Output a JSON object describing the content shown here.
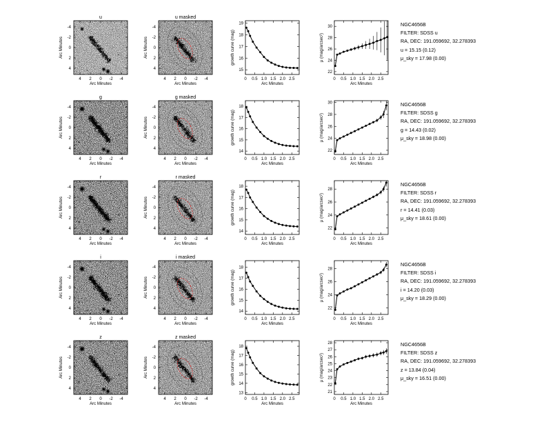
{
  "figure": {
    "background": "#ffffff",
    "ink": "#000000"
  },
  "rows": [
    {
      "band": "u",
      "image_title": "u",
      "masked_title": "u masked",
      "info": [
        "NGC4656B",
        "FILTER: SDSS u",
        "RA, DEC: 191.059692, 32.278393",
        "u = 15.15  (0.12)",
        "μ_sky = 17.98  (0.00)"
      ]
    },
    {
      "band": "g",
      "image_title": "g",
      "masked_title": "g masked",
      "info": [
        "NGC4656B",
        "FILTER: SDSS g",
        "RA, DEC: 191.059692, 32.278393",
        "g = 14.43  (0.02)",
        "μ_sky = 18.98  (0.00)"
      ]
    },
    {
      "band": "r",
      "image_title": "r",
      "masked_title": "r masked",
      "info": [
        "NGC4656B",
        "FILTER: SDSS r",
        "RA, DEC: 191.059692, 32.278393",
        "r = 14.41  (0.03)",
        "μ_sky = 18.61  (0.00)"
      ]
    },
    {
      "band": "i",
      "image_title": "i",
      "masked_title": "i masked",
      "info": [
        "NGC4656B",
        "FILTER: SDSS i",
        "RA, DEC: 191.059692, 32.278393",
        "i = 14.20  (0.03)",
        "μ_sky = 18.29  (0.00)"
      ]
    },
    {
      "band": "z",
      "image_title": "z",
      "masked_title": "z masked",
      "info": [
        "NGC4656B",
        "FILTER: SDSS z",
        "RA, DEC: 191.059692, 32.278393",
        "z = 13.84  (0.04)",
        "μ_sky = 16.51  (0.00)"
      ]
    }
  ],
  "chart_data": [
    {
      "type": "image",
      "panel": "band images",
      "title": [
        "u",
        "g",
        "r",
        "i",
        "z"
      ],
      "xlabel": "Arc Minutes",
      "ylabel": "Arc Minutes",
      "xticks": [
        4,
        2,
        0,
        -2,
        -4
      ],
      "yticks": [
        -4,
        -2,
        0,
        2,
        4
      ],
      "xlim": [
        5.2,
        -5.2
      ],
      "ylim": [
        -5.2,
        5.2
      ]
    },
    {
      "type": "image",
      "panel": "masked images with ellipse apertures",
      "title": [
        "u masked",
        "g masked",
        "r masked",
        "i masked",
        "z masked"
      ],
      "xlabel": "Arc Minutes",
      "ylabel": "Arc Minutes",
      "xticks": [
        4,
        2,
        0,
        -2,
        -4
      ],
      "yticks": [
        -4,
        -2,
        0,
        2,
        4
      ],
      "xlim": [
        5.2,
        -5.2
      ],
      "ylim": [
        -5.2,
        5.2
      ],
      "ellipse_colors": [
        "#dd2222",
        "#555555"
      ]
    },
    {
      "type": "line",
      "panel": "growth curve",
      "xlabel": "Arc Minutes",
      "ylabel": "growth curve (mag)",
      "xticks": [
        0,
        0.5,
        1.0,
        1.5,
        2.0,
        2.5
      ],
      "xtick_labels": [
        "0",
        "0.5",
        "1.0",
        "1.5",
        "2.0",
        "2.5"
      ],
      "xlim": [
        0,
        2.9
      ],
      "series": [
        {
          "band": "u",
          "yticks": [
            15,
            16,
            17,
            18,
            19
          ],
          "ylim": [
            19.2,
            14.6
          ],
          "x": [
            0.05,
            0.15,
            0.25,
            0.4,
            0.6,
            0.8,
            1.0,
            1.2,
            1.4,
            1.6,
            1.8,
            2.0,
            2.2,
            2.4,
            2.6,
            2.8
          ],
          "y": [
            18.6,
            18.3,
            17.9,
            17.4,
            16.9,
            16.5,
            16.1,
            15.8,
            15.6,
            15.45,
            15.33,
            15.25,
            15.2,
            15.17,
            15.16,
            15.15
          ]
        },
        {
          "band": "g",
          "yticks": [
            14,
            15,
            16,
            17,
            18
          ],
          "ylim": [
            18.5,
            13.7
          ],
          "x": [
            0.05,
            0.15,
            0.25,
            0.4,
            0.6,
            0.8,
            1.0,
            1.2,
            1.4,
            1.6,
            1.8,
            2.0,
            2.2,
            2.4,
            2.6,
            2.8
          ],
          "y": [
            17.9,
            17.5,
            17.1,
            16.6,
            16.1,
            15.7,
            15.35,
            15.1,
            14.9,
            14.75,
            14.63,
            14.55,
            14.49,
            14.46,
            14.44,
            14.43
          ]
        },
        {
          "band": "r",
          "yticks": [
            14,
            15,
            16,
            17,
            18
          ],
          "ylim": [
            18.5,
            13.7
          ],
          "x": [
            0.05,
            0.15,
            0.25,
            0.4,
            0.6,
            0.8,
            1.0,
            1.2,
            1.4,
            1.6,
            1.8,
            2.0,
            2.2,
            2.4,
            2.6,
            2.8
          ],
          "y": [
            17.7,
            17.4,
            17.0,
            16.6,
            16.1,
            15.7,
            15.35,
            15.1,
            14.9,
            14.75,
            14.63,
            14.55,
            14.49,
            14.45,
            14.42,
            14.41
          ]
        },
        {
          "band": "i",
          "yticks": [
            14,
            15,
            16,
            17,
            18
          ],
          "ylim": [
            18.6,
            13.7
          ],
          "x": [
            0.05,
            0.15,
            0.25,
            0.4,
            0.6,
            0.8,
            1.0,
            1.2,
            1.4,
            1.6,
            1.8,
            2.0,
            2.2,
            2.4,
            2.6,
            2.8
          ],
          "y": [
            17.5,
            17.1,
            16.7,
            16.3,
            15.8,
            15.4,
            15.1,
            14.85,
            14.65,
            14.5,
            14.4,
            14.32,
            14.26,
            14.23,
            14.21,
            14.2
          ]
        },
        {
          "band": "z",
          "yticks": [
            13,
            14,
            15,
            16,
            17,
            18
          ],
          "ylim": [
            18.6,
            12.8
          ],
          "x": [
            0.05,
            0.15,
            0.25,
            0.4,
            0.6,
            0.8,
            1.0,
            1.2,
            1.4,
            1.6,
            1.8,
            2.0,
            2.2,
            2.4,
            2.6,
            2.8
          ],
          "y": [
            17.8,
            17.3,
            16.8,
            16.2,
            15.6,
            15.1,
            14.75,
            14.5,
            14.3,
            14.15,
            14.05,
            13.97,
            13.92,
            13.88,
            13.86,
            13.84
          ]
        }
      ]
    },
    {
      "type": "line",
      "panel": "surface brightness profile",
      "xlabel": "Arc Minutes",
      "ylabel": "μ (mag/arcsec²)",
      "xticks": [
        0,
        0.5,
        1.0,
        1.5,
        2.0,
        2.5
      ],
      "xtick_labels": [
        "0",
        "0.5",
        "1.0",
        "1.5",
        "2.0",
        "2.5"
      ],
      "xlim": [
        0,
        2.9
      ],
      "series": [
        {
          "band": "u",
          "yticks": [
            22,
            24,
            26,
            28,
            30
          ],
          "ylim": [
            31,
            21.5
          ],
          "x": [
            0.05,
            0.15,
            0.3,
            0.5,
            0.7,
            0.9,
            1.1,
            1.3,
            1.5,
            1.7,
            1.9,
            2.1,
            2.3,
            2.5,
            2.7,
            2.85
          ],
          "y": [
            23.0,
            25.0,
            25.2,
            25.5,
            25.7,
            25.9,
            26.1,
            26.3,
            26.5,
            26.7,
            26.9,
            27.1,
            27.4,
            27.6,
            27.9,
            28.1
          ],
          "err": [
            0.1,
            0.1,
            0.1,
            0.15,
            0.2,
            0.25,
            0.3,
            0.4,
            0.5,
            0.7,
            0.9,
            1.2,
            1.6,
            2.2,
            3.0,
            4.0
          ]
        },
        {
          "band": "g",
          "yticks": [
            22,
            24,
            26,
            28,
            30
          ],
          "ylim": [
            30.3,
            21.3
          ],
          "x": [
            0.05,
            0.15,
            0.3,
            0.5,
            0.7,
            0.9,
            1.1,
            1.3,
            1.5,
            1.7,
            1.9,
            2.1,
            2.3,
            2.5,
            2.65,
            2.8
          ],
          "y": [
            21.8,
            23.7,
            24.0,
            24.3,
            24.6,
            24.9,
            25.2,
            25.5,
            25.8,
            26.1,
            26.4,
            26.7,
            27.0,
            27.5,
            28.0,
            29.5
          ],
          "err": [
            0.05,
            0.05,
            0.05,
            0.05,
            0.05,
            0.08,
            0.1,
            0.1,
            0.12,
            0.15,
            0.15,
            0.2,
            0.3,
            0.4,
            0.6,
            0.8
          ]
        },
        {
          "band": "r",
          "yticks": [
            22,
            24,
            26,
            28
          ],
          "ylim": [
            29.3,
            21.0
          ],
          "x": [
            0.05,
            0.15,
            0.3,
            0.5,
            0.7,
            0.9,
            1.1,
            1.3,
            1.5,
            1.7,
            1.9,
            2.1,
            2.3,
            2.5,
            2.65,
            2.8
          ],
          "y": [
            21.8,
            23.8,
            24.1,
            24.4,
            24.7,
            25.0,
            25.3,
            25.6,
            25.9,
            26.2,
            26.5,
            26.8,
            27.1,
            27.5,
            28.0,
            29.0
          ],
          "err": [
            0.05,
            0.05,
            0.05,
            0.05,
            0.05,
            0.05,
            0.08,
            0.1,
            0.1,
            0.12,
            0.15,
            0.2,
            0.25,
            0.3,
            0.4,
            0.6
          ]
        },
        {
          "band": "i",
          "yticks": [
            22,
            24,
            26,
            28
          ],
          "ylim": [
            29.2,
            21.0
          ],
          "x": [
            0.05,
            0.15,
            0.3,
            0.5,
            0.7,
            0.9,
            1.1,
            1.3,
            1.5,
            1.7,
            1.9,
            2.1,
            2.3,
            2.5,
            2.65,
            2.8
          ],
          "y": [
            21.7,
            23.9,
            24.2,
            24.5,
            24.8,
            25.0,
            25.3,
            25.6,
            25.9,
            26.2,
            26.5,
            26.8,
            27.1,
            27.4,
            27.8,
            28.6
          ],
          "err": [
            0.05,
            0.05,
            0.05,
            0.05,
            0.05,
            0.05,
            0.08,
            0.1,
            0.1,
            0.1,
            0.12,
            0.15,
            0.2,
            0.25,
            0.3,
            0.4
          ]
        },
        {
          "band": "z",
          "yticks": [
            21,
            22,
            23,
            24,
            25,
            26,
            27,
            28
          ],
          "ylim": [
            28.3,
            20.6
          ],
          "x": [
            0.05,
            0.15,
            0.3,
            0.5,
            0.7,
            0.9,
            1.1,
            1.3,
            1.5,
            1.7,
            1.9,
            2.1,
            2.3,
            2.5,
            2.65,
            2.8
          ],
          "y": [
            22.2,
            24.2,
            24.6,
            24.9,
            25.1,
            25.3,
            25.5,
            25.7,
            25.8,
            26.0,
            26.1,
            26.2,
            26.3,
            26.5,
            26.6,
            26.8
          ],
          "err": [
            0.05,
            0.08,
            0.1,
            0.1,
            0.12,
            0.15,
            0.15,
            0.2,
            0.2,
            0.25,
            0.25,
            0.3,
            0.3,
            0.3,
            0.35,
            0.4
          ]
        }
      ]
    }
  ]
}
